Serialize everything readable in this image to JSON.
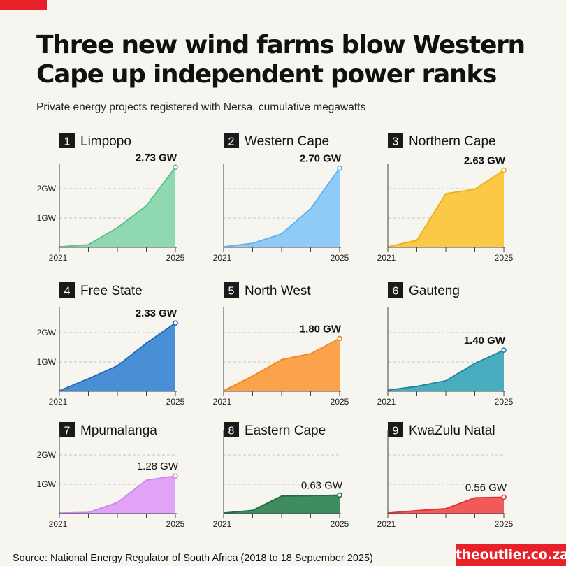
{
  "title_line1": "Three new wind farms blow Western",
  "title_line2": "Cape up independent power ranks",
  "subtitle": "Private energy projects registered with Nersa, cumulative megawatts",
  "source": "Source:  National Energy Regulator of South Africa (2018 to 18 September 2025)",
  "brand": "theoutlier.co.za",
  "chart_data": [
    {
      "type": "area",
      "rank": "1",
      "region": "Limpopo",
      "x": [
        "2021",
        "2022",
        "2023",
        "2024",
        "2025"
      ],
      "values": [
        0.02,
        0.09,
        0.67,
        1.42,
        2.73
      ],
      "end_label": "2.73 GW",
      "color": "#8fd8b2",
      "line": "#5cbf8c",
      "y_ticks": [
        "1GW",
        "2GW"
      ],
      "x_ticks": [
        "2021",
        "2025"
      ]
    },
    {
      "type": "area",
      "rank": "2",
      "region": "Western Cape",
      "x": [
        "2021",
        "2022",
        "2023",
        "2024",
        "2025"
      ],
      "values": [
        0.02,
        0.14,
        0.46,
        1.32,
        2.7
      ],
      "end_label": "2.70 GW",
      "color": "#8ecbf6",
      "line": "#5fb2ee",
      "y_ticks": [],
      "x_ticks": [
        "2021",
        "2025"
      ]
    },
    {
      "type": "area",
      "rank": "3",
      "region": "Northern Cape",
      "x": [
        "2021",
        "2022",
        "2023",
        "2024",
        "2025"
      ],
      "values": [
        0.02,
        0.24,
        1.83,
        1.98,
        2.63
      ],
      "end_label": "2.63 GW",
      "color": "#fbc945",
      "line": "#efae12",
      "y_ticks": [],
      "x_ticks": [
        "2021",
        "2025"
      ]
    },
    {
      "type": "area",
      "rank": "4",
      "region": "Free State",
      "x": [
        "2021",
        "2022",
        "2023",
        "2024",
        "2025"
      ],
      "values": [
        0.02,
        0.43,
        0.87,
        1.64,
        2.33
      ],
      "end_label": "2.33 GW",
      "color": "#4a8ed5",
      "line": "#2469b8",
      "y_ticks": [
        "1GW",
        "2GW"
      ],
      "x_ticks": [
        "2021",
        "2025"
      ]
    },
    {
      "type": "area",
      "rank": "5",
      "region": "North West",
      "x": [
        "2021",
        "2022",
        "2023",
        "2024",
        "2025"
      ],
      "values": [
        0.02,
        0.52,
        1.08,
        1.28,
        1.8
      ],
      "end_label": "1.80 GW",
      "color": "#fba24a",
      "line": "#f4861c",
      "y_ticks": [],
      "x_ticks": [
        "2021",
        "2025"
      ]
    },
    {
      "type": "area",
      "rank": "6",
      "region": "Gauteng",
      "x": [
        "2021",
        "2022",
        "2023",
        "2024",
        "2025"
      ],
      "values": [
        0.04,
        0.17,
        0.36,
        0.95,
        1.4
      ],
      "end_label": "1.40 GW",
      "color": "#4aacbf",
      "line": "#1f8499",
      "y_ticks": [],
      "x_ticks": [
        "2021",
        "2025"
      ]
    },
    {
      "type": "area",
      "rank": "7",
      "region": "Mpumalanga",
      "x": [
        "2021",
        "2022",
        "2023",
        "2024",
        "2025"
      ],
      "values": [
        0.02,
        0.04,
        0.38,
        1.14,
        1.28
      ],
      "end_label": "1.28 GW",
      "color": "#e2a3f6",
      "line": "#cf86ea",
      "y_ticks": [
        "1GW",
        "2GW"
      ],
      "x_ticks": [
        "2021",
        "2025"
      ]
    },
    {
      "type": "area",
      "rank": "8",
      "region": "Eastern Cape",
      "x": [
        "2021",
        "2022",
        "2023",
        "2024",
        "2025"
      ],
      "values": [
        0.02,
        0.11,
        0.6,
        0.61,
        0.63
      ],
      "end_label": "0.63 GW",
      "color": "#3e8c5f",
      "line": "#236b42",
      "y_ticks": [],
      "x_ticks": [
        "2021",
        "2025"
      ]
    },
    {
      "type": "area",
      "rank": "9",
      "region": "KwaZulu Natal",
      "x": [
        "2021",
        "2022",
        "2023",
        "2024",
        "2025"
      ],
      "values": [
        0.02,
        0.1,
        0.17,
        0.54,
        0.56
      ],
      "end_label": "0.56 GW",
      "color": "#f05a58",
      "line": "#e2302f",
      "y_ticks": [],
      "x_ticks": [
        "2021",
        "2025"
      ]
    }
  ]
}
